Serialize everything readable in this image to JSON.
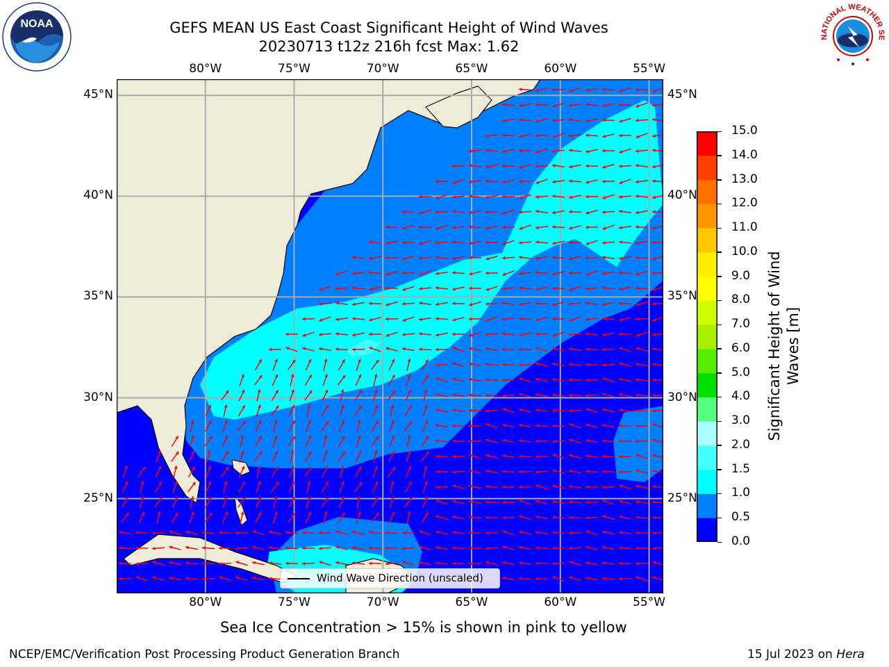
{
  "title": {
    "line1": "GEFS MEAN US East Coast Significant Height of Wind Waves",
    "line2": "20230713 t12z 216h fcst   Max: 1.62"
  },
  "logos": {
    "left": "NOAA",
    "right": "NATIONAL WEATHER SERVICE"
  },
  "map": {
    "lon_labels": [
      "80°W",
      "75°W",
      "70°W",
      "65°W",
      "60°W",
      "55°W"
    ],
    "lat_labels": [
      "45°N",
      "40°N",
      "35°N",
      "30°N",
      "25°N"
    ],
    "extent": {
      "lon_min": -85,
      "lon_max": -54.2,
      "lat_min": 20.3,
      "lat_max": 45.8
    },
    "grid": true,
    "land_color": "#efedda",
    "arrow_color": "#ff0000",
    "legend_label": "Wind Wave Direction (unscaled)"
  },
  "colorbar": {
    "label_line1": "Significant Height of Wind",
    "label_line2": "Waves [m]",
    "ticks": [
      "0.0",
      "0.5",
      "1.0",
      "1.5",
      "2.0",
      "3.0",
      "4.0",
      "5.0",
      "6.0",
      "7.0",
      "8.0",
      "9.0",
      "10.0",
      "11.0",
      "12.0",
      "13.0",
      "14.0",
      "15.0"
    ],
    "colors": [
      "#0000ff",
      "#007fff",
      "#00ffff",
      "#44ffff",
      "#aaffff",
      "#55ff7f",
      "#00e000",
      "#55ee00",
      "#aaee00",
      "#ccff00",
      "#ffff00",
      "#ffee00",
      "#ffc800",
      "#ff9600",
      "#ff7000",
      "#ff4000",
      "#ff0000"
    ]
  },
  "footer": {
    "note": "Sea Ice Concentration > 15% is shown in pink to yellow",
    "branch": "NCEP/EMC/Verification Post Processing Product Generation Branch",
    "date_prefix": "15 Jul 2023 on ",
    "machine": "Hera"
  }
}
